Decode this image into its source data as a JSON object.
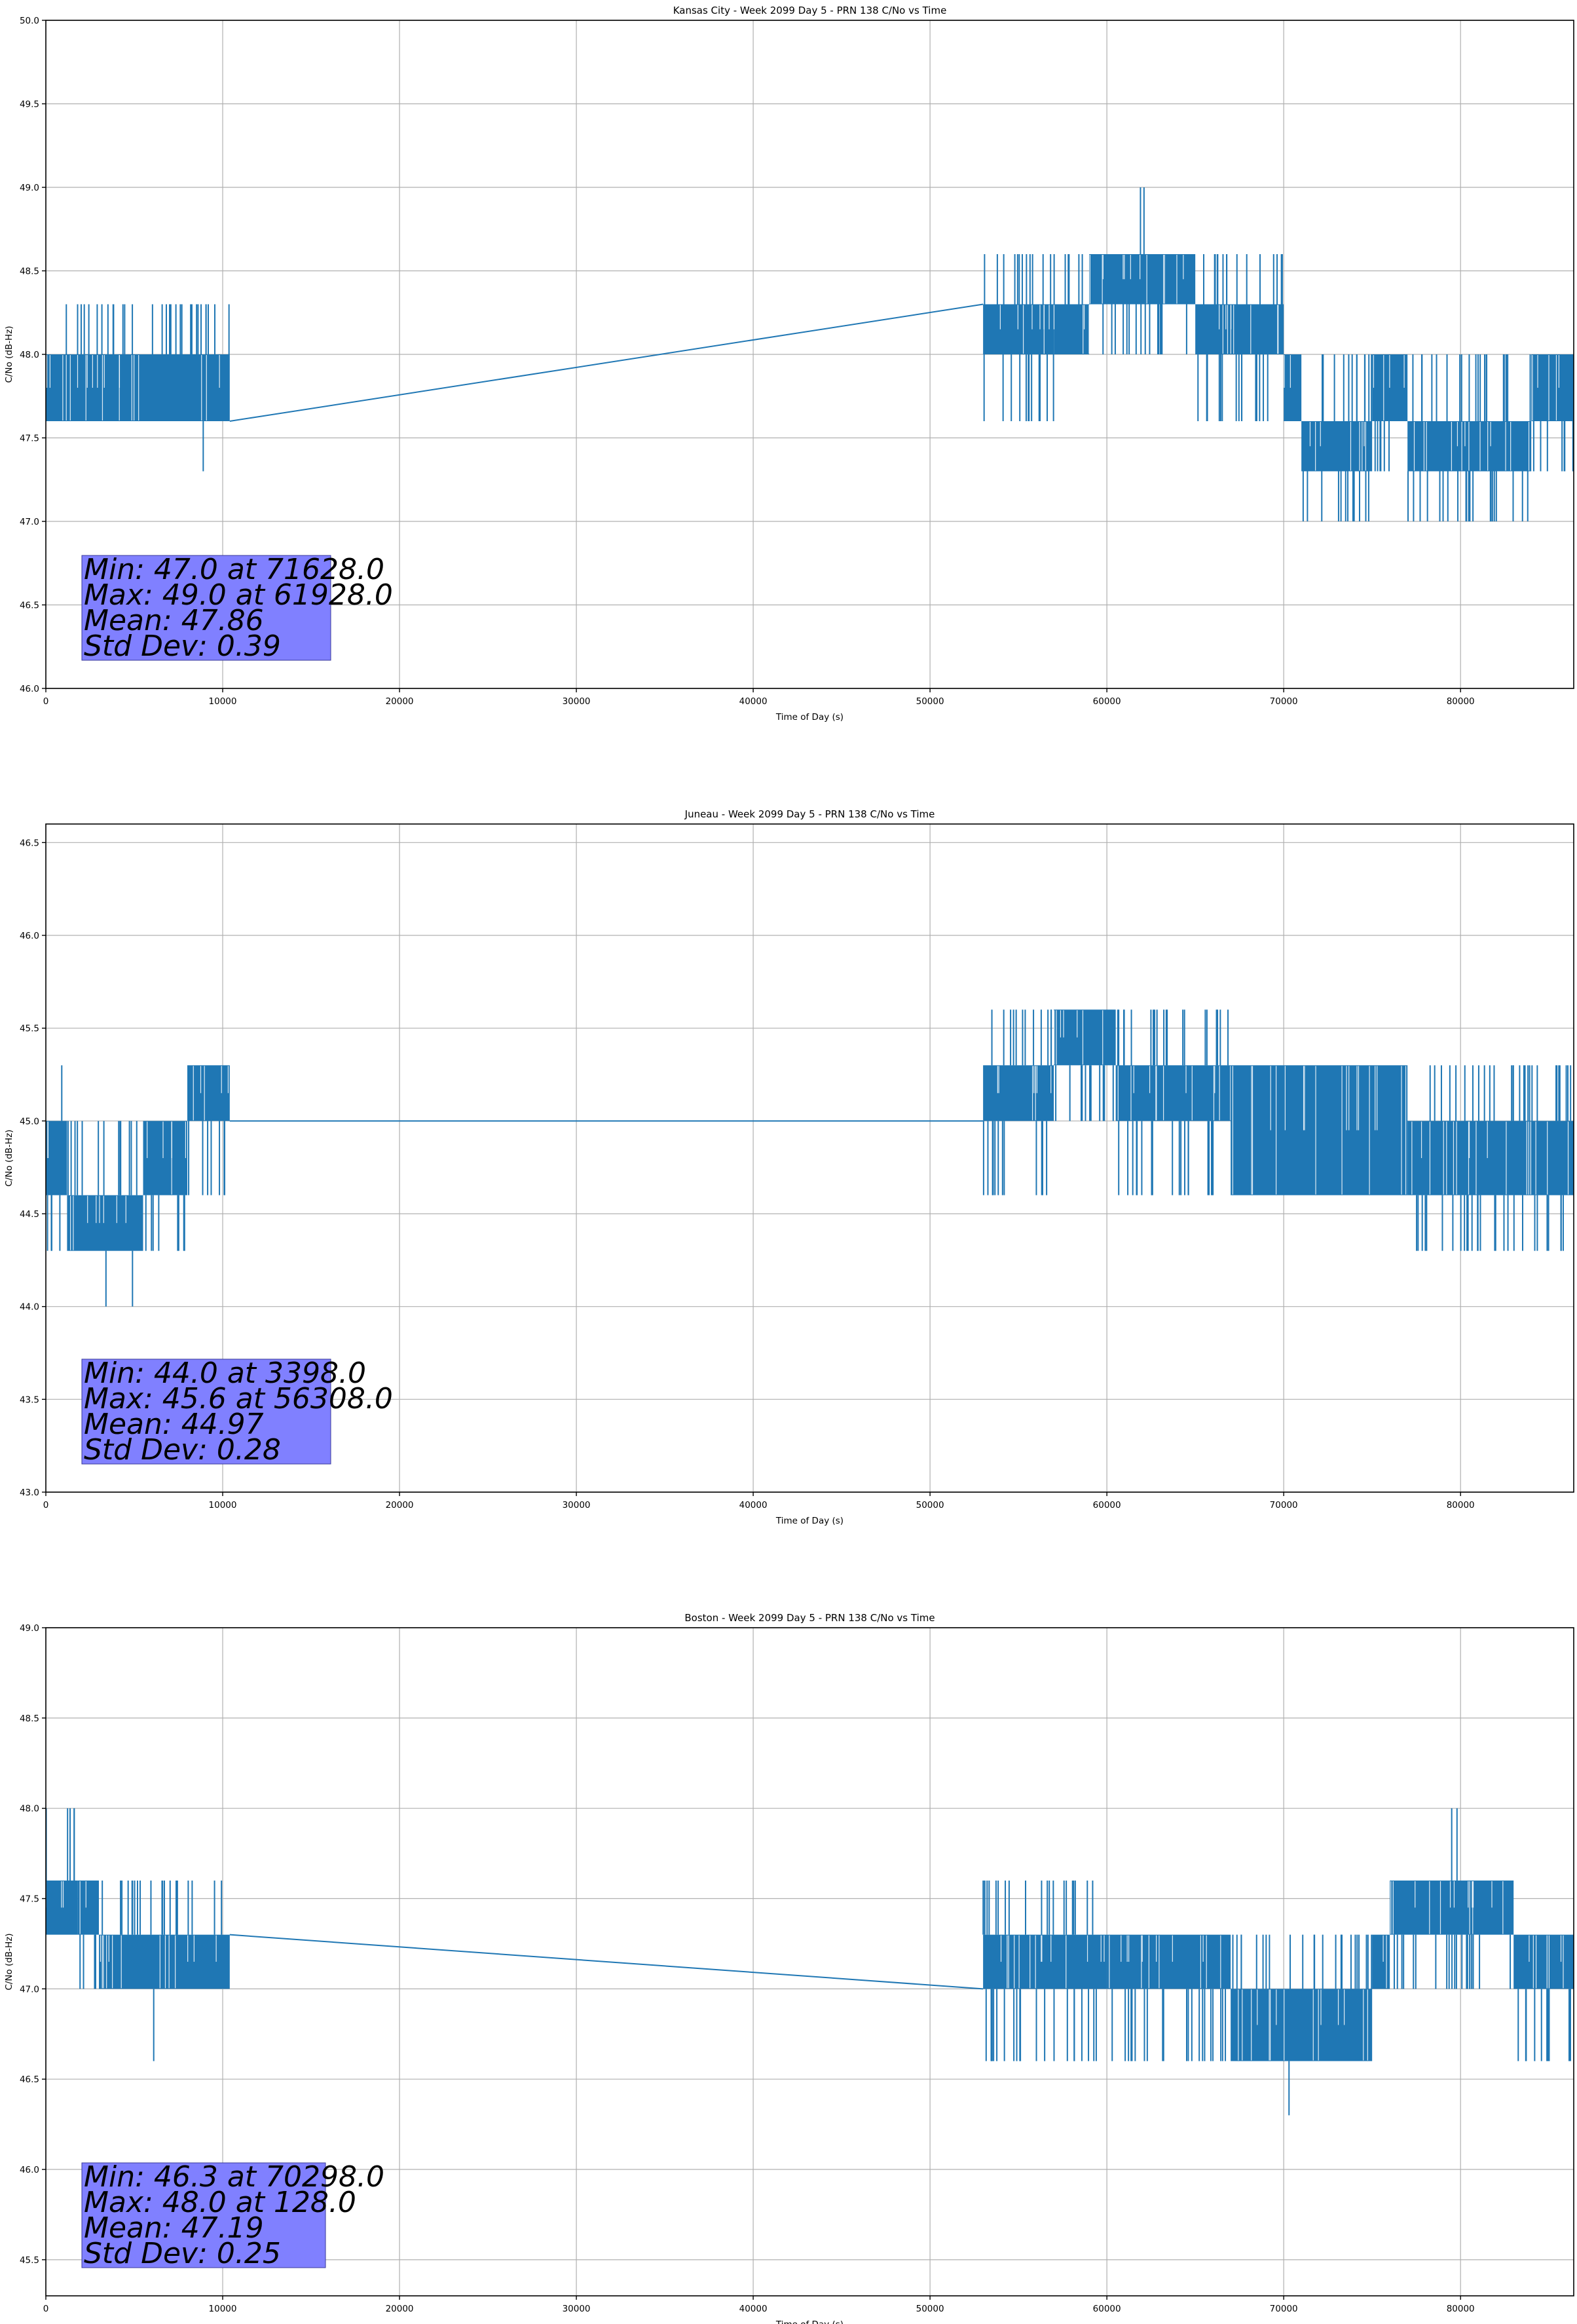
{
  "chart_data": [
    {
      "type": "line",
      "title": "Kansas City - Week 2099 Day 5 - PRN 138 C/No vs Time",
      "xlabel": "Time of Day (s)",
      "ylabel": "C/No (dB-Hz)",
      "xlim": [
        0,
        86400
      ],
      "ylim": [
        46.0,
        50.0
      ],
      "xticks": [
        0,
        10000,
        20000,
        30000,
        40000,
        50000,
        60000,
        70000,
        80000
      ],
      "yticks": [
        "46.0",
        "46.5",
        "47.0",
        "47.5",
        "48.0",
        "48.5",
        "49.0",
        "49.5",
        "50.0"
      ],
      "grid": true,
      "color": "#1f77b4",
      "stats": [
        "Min: 47.0 at 71628.0",
        "Max: 49.0 at 61928.0",
        "Mean: 47.86",
        "Std Dev: 0.39"
      ],
      "gap": {
        "start": 10400,
        "end": 53000
      },
      "bands": [
        {
          "from": 0,
          "to": 10400,
          "lo": 47.6,
          "hi": 48.0,
          "spikes_hi": [
            48.3
          ],
          "spikes_lo": [],
          "outliers": [
            [
              8900,
              47.3
            ]
          ]
        },
        {
          "from": 53000,
          "to": 57000,
          "lo": 48.0,
          "hi": 48.3,
          "spikes_hi": [
            48.6
          ],
          "spikes_lo": [
            47.6
          ],
          "outliers": []
        },
        {
          "from": 57000,
          "to": 59000,
          "lo": 48.0,
          "hi": 48.3,
          "spikes_hi": [
            48.6
          ],
          "spikes_lo": [],
          "outliers": []
        },
        {
          "from": 59000,
          "to": 65000,
          "lo": 48.3,
          "hi": 48.6,
          "spikes_hi": [],
          "spikes_lo": [
            48.0
          ],
          "outliers": [
            [
              61900,
              49.0
            ],
            [
              62100,
              49.0
            ]
          ]
        },
        {
          "from": 65000,
          "to": 70000,
          "lo": 48.0,
          "hi": 48.3,
          "spikes_hi": [
            48.6
          ],
          "spikes_lo": [
            47.6
          ],
          "outliers": []
        },
        {
          "from": 70000,
          "to": 71000,
          "lo": 47.6,
          "hi": 48.0,
          "spikes_hi": [],
          "spikes_lo": [],
          "outliers": []
        },
        {
          "from": 71000,
          "to": 75000,
          "lo": 47.3,
          "hi": 47.6,
          "spikes_hi": [
            48.0
          ],
          "spikes_lo": [
            47.0
          ],
          "outliers": []
        },
        {
          "from": 75000,
          "to": 77000,
          "lo": 47.6,
          "hi": 48.0,
          "spikes_hi": [],
          "spikes_lo": [
            47.3
          ],
          "outliers": []
        },
        {
          "from": 77000,
          "to": 84000,
          "lo": 47.3,
          "hi": 47.6,
          "spikes_hi": [
            48.0
          ],
          "spikes_lo": [
            47.0
          ],
          "outliers": []
        },
        {
          "from": 84000,
          "to": 86400,
          "lo": 47.6,
          "hi": 48.0,
          "spikes_hi": [],
          "spikes_lo": [
            47.3
          ],
          "outliers": []
        }
      ],
      "bridge": [
        [
          10400,
          47.6
        ],
        [
          53000,
          48.3
        ]
      ]
    },
    {
      "type": "line",
      "title": "Juneau - Week 2099 Day 5 - PRN 138 C/No vs Time",
      "xlabel": "Time of Day (s)",
      "ylabel": "C/No (dB-Hz)",
      "xlim": [
        0,
        86400
      ],
      "ylim": [
        43.0,
        46.6
      ],
      "xticks": [
        0,
        10000,
        20000,
        30000,
        40000,
        50000,
        60000,
        70000,
        80000
      ],
      "yticks": [
        "43.0",
        "43.5",
        "44.0",
        "44.5",
        "45.0",
        "45.5",
        "46.0",
        "46.5"
      ],
      "grid": true,
      "color": "#1f77b4",
      "stats": [
        "Min: 44.0 at 3398.0",
        "Max: 45.6 at 56308.0",
        "Mean: 44.97",
        "Std Dev: 0.28"
      ],
      "gap": {
        "start": 10400,
        "end": 53000
      },
      "bands": [
        {
          "from": 0,
          "to": 1200,
          "lo": 44.6,
          "hi": 45.0,
          "spikes_hi": [],
          "spikes_lo": [
            44.3
          ],
          "outliers": [
            [
              900,
              45.3
            ]
          ]
        },
        {
          "from": 1200,
          "to": 5500,
          "lo": 44.3,
          "hi": 44.6,
          "spikes_hi": [
            45.0
          ],
          "spikes_lo": [],
          "outliers": [
            [
              3400,
              44.0
            ],
            [
              4900,
              44.0
            ]
          ]
        },
        {
          "from": 5500,
          "to": 8000,
          "lo": 44.6,
          "hi": 45.0,
          "spikes_hi": [],
          "spikes_lo": [
            44.3
          ],
          "outliers": []
        },
        {
          "from": 8000,
          "to": 10400,
          "lo": 45.0,
          "hi": 45.3,
          "spikes_hi": [],
          "spikes_lo": [
            44.6
          ],
          "outliers": []
        },
        {
          "from": 53000,
          "to": 57000,
          "lo": 45.0,
          "hi": 45.3,
          "spikes_hi": [
            45.6
          ],
          "spikes_lo": [
            44.6
          ],
          "outliers": []
        },
        {
          "from": 57000,
          "to": 60500,
          "lo": 45.3,
          "hi": 45.6,
          "spikes_hi": [],
          "spikes_lo": [
            45.0
          ],
          "outliers": []
        },
        {
          "from": 60500,
          "to": 67000,
          "lo": 45.0,
          "hi": 45.3,
          "spikes_hi": [
            45.6
          ],
          "spikes_lo": [
            44.6
          ],
          "outliers": []
        },
        {
          "from": 67000,
          "to": 77000,
          "lo": 44.6,
          "hi": 45.3,
          "spikes_hi": [],
          "spikes_lo": [],
          "outliers": []
        },
        {
          "from": 77000,
          "to": 86400,
          "lo": 44.6,
          "hi": 45.0,
          "spikes_hi": [
            45.3
          ],
          "spikes_lo": [
            44.3
          ],
          "outliers": []
        }
      ],
      "bridge": [
        [
          10400,
          45.0
        ],
        [
          53000,
          45.0
        ]
      ]
    },
    {
      "type": "line",
      "title": "Boston - Week 2099 Day 5 - PRN 138 C/No vs Time",
      "xlabel": "Time of Day (s)",
      "ylabel": "C/No (dB-Hz)",
      "xlim": [
        0,
        86400
      ],
      "ylim": [
        45.3,
        49.0
      ],
      "xticks": [
        0,
        10000,
        20000,
        30000,
        40000,
        50000,
        60000,
        70000,
        80000
      ],
      "yticks": [
        "45.5",
        "46.0",
        "46.5",
        "47.0",
        "47.5",
        "48.0",
        "48.5",
        "49.0"
      ],
      "grid": true,
      "color": "#1f77b4",
      "stats": [
        "Min: 46.3 at 70298.0",
        "Max: 48.0 at 128.0",
        "Mean: 47.19",
        "Std Dev: 0.25"
      ],
      "gap": {
        "start": 10400,
        "end": 53000
      },
      "bands": [
        {
          "from": 0,
          "to": 1800,
          "lo": 47.3,
          "hi": 47.6,
          "spikes_hi": [
            48.0
          ],
          "spikes_lo": [],
          "outliers": []
        },
        {
          "from": 1800,
          "to": 3000,
          "lo": 47.3,
          "hi": 47.6,
          "spikes_hi": [],
          "spikes_lo": [
            47.0
          ],
          "outliers": []
        },
        {
          "from": 3000,
          "to": 10400,
          "lo": 47.0,
          "hi": 47.3,
          "spikes_hi": [
            47.6
          ],
          "spikes_lo": [],
          "outliers": [
            [
              6100,
              46.6
            ]
          ]
        },
        {
          "from": 53000,
          "to": 60000,
          "lo": 47.0,
          "hi": 47.3,
          "spikes_hi": [
            47.6
          ],
          "spikes_lo": [
            46.6
          ],
          "outliers": []
        },
        {
          "from": 60000,
          "to": 67000,
          "lo": 47.0,
          "hi": 47.3,
          "spikes_hi": [],
          "spikes_lo": [
            46.6
          ],
          "outliers": []
        },
        {
          "from": 67000,
          "to": 75000,
          "lo": 46.6,
          "hi": 47.0,
          "spikes_hi": [
            47.3
          ],
          "spikes_lo": [],
          "outliers": [
            [
              70300,
              46.3
            ]
          ]
        },
        {
          "from": 75000,
          "to": 76000,
          "lo": 47.0,
          "hi": 47.3,
          "spikes_hi": [],
          "spikes_lo": [],
          "outliers": []
        },
        {
          "from": 76000,
          "to": 83000,
          "lo": 47.3,
          "hi": 47.6,
          "spikes_hi": [],
          "spikes_lo": [
            47.0
          ],
          "outliers": [
            [
              79500,
              48.0
            ],
            [
              79800,
              48.0
            ]
          ]
        },
        {
          "from": 83000,
          "to": 86400,
          "lo": 47.0,
          "hi": 47.3,
          "spikes_hi": [],
          "spikes_lo": [
            46.6
          ],
          "outliers": []
        }
      ],
      "bridge": [
        [
          10400,
          47.3
        ],
        [
          53000,
          47.0
        ]
      ]
    }
  ]
}
